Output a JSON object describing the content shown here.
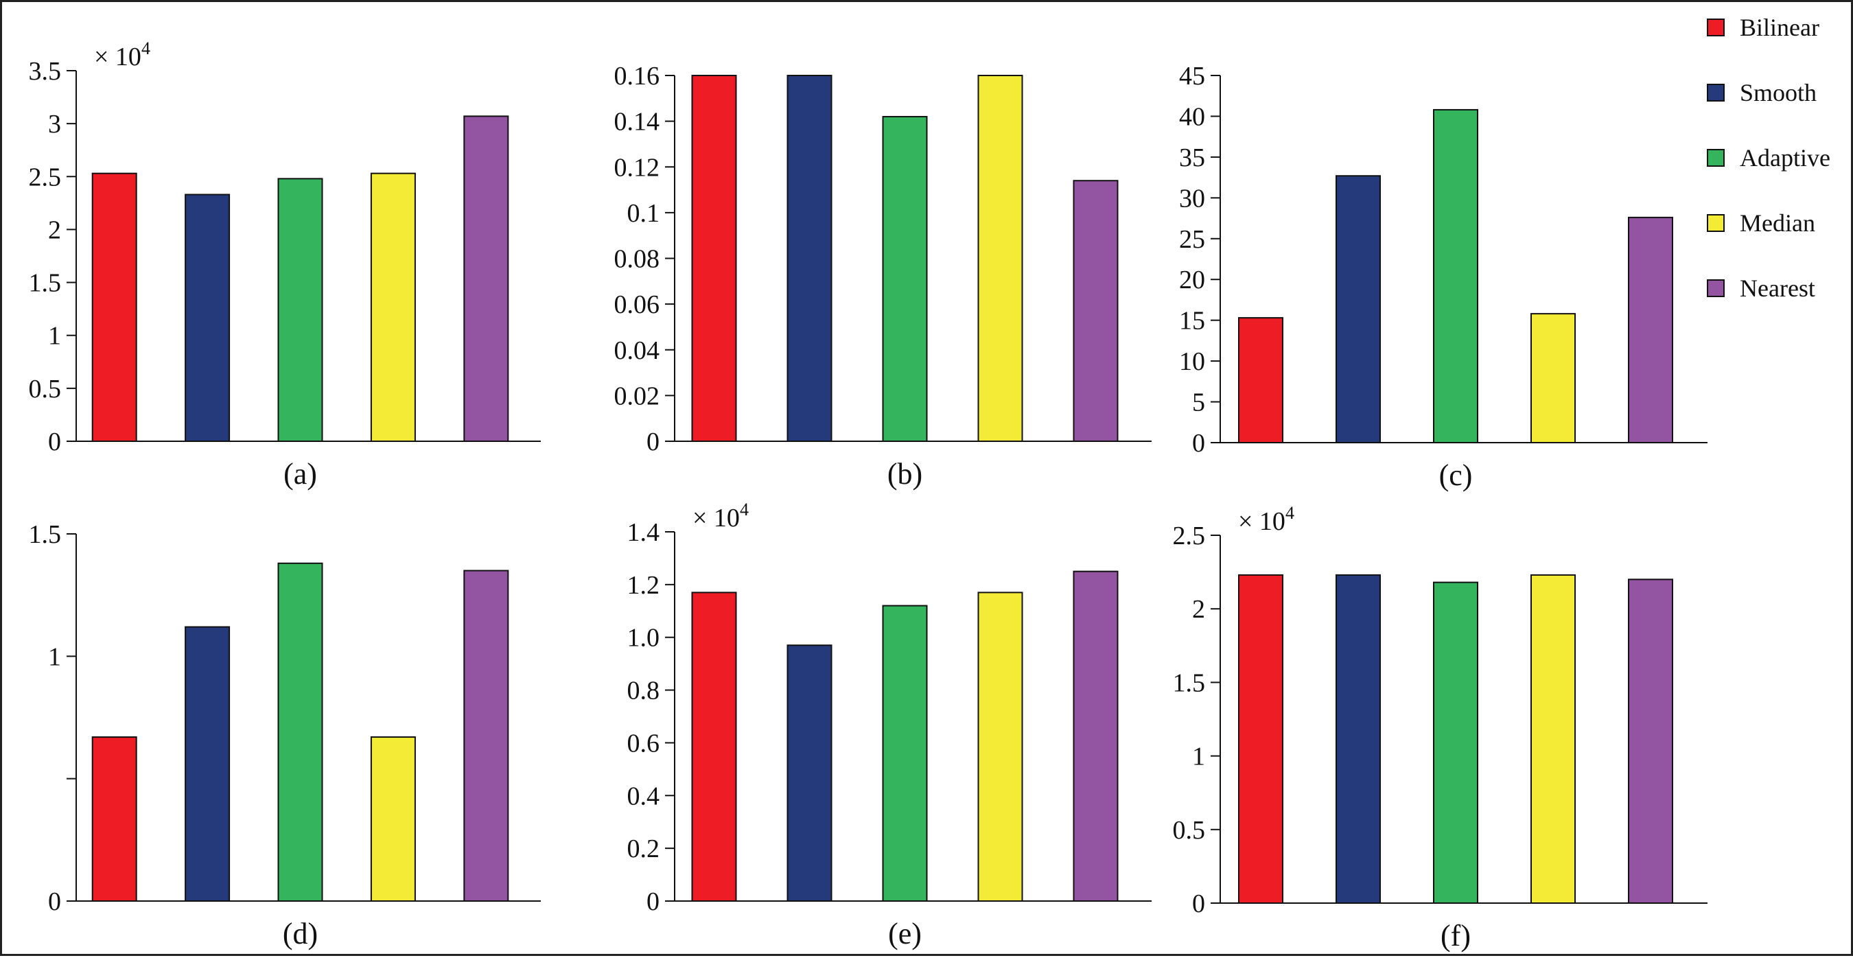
{
  "legend": [
    {
      "label": "Bilinear",
      "color": "#ee1c25"
    },
    {
      "label": "Smooth",
      "color": "#253a7a"
    },
    {
      "label": "Adaptive",
      "color": "#34b55d"
    },
    {
      "label": "Median",
      "color": "#f3eb36"
    },
    {
      "label": "Nearest",
      "color": "#9355a2"
    }
  ],
  "chart_data": [
    {
      "type": "bar",
      "panel_label": "(a)",
      "categories": [
        "Bilinear",
        "Smooth",
        "Adaptive",
        "Median",
        "Nearest"
      ],
      "values": [
        2.53,
        2.33,
        2.48,
        2.53,
        3.07
      ],
      "multiplier_label": "× 10",
      "multiplier_exp": "4",
      "ylim": [
        0,
        3.5
      ],
      "yticks": [
        0,
        0.5,
        1,
        1.5,
        2,
        2.5,
        3,
        3.5
      ],
      "ytick_labels": [
        "0",
        "0.5",
        "1",
        "1.5",
        "2",
        "2.5",
        "3",
        "3.5"
      ]
    },
    {
      "type": "bar",
      "panel_label": "(b)",
      "categories": [
        "Bilinear",
        "Smooth",
        "Adaptive",
        "Median",
        "Nearest"
      ],
      "values": [
        0.16,
        0.16,
        0.142,
        0.16,
        0.114
      ],
      "multiplier_label": "",
      "multiplier_exp": "",
      "ylim": [
        0,
        0.16
      ],
      "yticks": [
        0,
        0.02,
        0.04,
        0.06,
        0.08,
        0.1,
        0.12,
        0.14,
        0.16
      ],
      "ytick_labels": [
        "0",
        "0.02",
        "0.04",
        "0.06",
        "0.08",
        "0.1",
        "0.12",
        "0.14",
        "0.16"
      ]
    },
    {
      "type": "bar",
      "panel_label": "(c)",
      "categories": [
        "Bilinear",
        "Smooth",
        "Adaptive",
        "Median",
        "Nearest"
      ],
      "values": [
        15.3,
        32.7,
        40.8,
        15.8,
        27.6
      ],
      "multiplier_label": "",
      "multiplier_exp": "",
      "ylim": [
        0,
        45
      ],
      "yticks": [
        0,
        5,
        10,
        15,
        20,
        25,
        30,
        35,
        40,
        45
      ],
      "ytick_labels": [
        "0",
        "5",
        "10",
        "15",
        "20",
        "25",
        "30",
        "35",
        "40",
        "45"
      ]
    },
    {
      "type": "bar",
      "panel_label": "(d)",
      "categories": [
        "Bilinear",
        "Smooth",
        "Adaptive",
        "Median",
        "Nearest"
      ],
      "values": [
        0.67,
        1.12,
        1.38,
        0.67,
        1.35
      ],
      "multiplier_label": "",
      "multiplier_exp": "",
      "ylim": [
        0,
        1.5
      ],
      "yticks": [
        0,
        0.5,
        1,
        1.5
      ],
      "ytick_labels": [
        "0",
        "",
        "1",
        "1.5"
      ]
    },
    {
      "type": "bar",
      "panel_label": "(e)",
      "categories": [
        "Bilinear",
        "Smooth",
        "Adaptive",
        "Median",
        "Nearest"
      ],
      "values": [
        1.17,
        0.97,
        1.12,
        1.17,
        1.25
      ],
      "multiplier_label": "× 10",
      "multiplier_exp": "4",
      "ylim": [
        0,
        1.4
      ],
      "yticks": [
        0,
        0.2,
        0.4,
        0.6,
        0.8,
        1.0,
        1.2,
        1.4
      ],
      "ytick_labels": [
        "0",
        "0.2",
        "0.4",
        "0.6",
        "0.8",
        "1.0",
        "1.2",
        "1.4"
      ]
    },
    {
      "type": "bar",
      "panel_label": "(f)",
      "categories": [
        "Bilinear",
        "Smooth",
        "Adaptive",
        "Median",
        "Nearest"
      ],
      "values": [
        2.23,
        2.23,
        2.18,
        2.23,
        2.2
      ],
      "multiplier_label": "× 10",
      "multiplier_exp": "4",
      "ylim": [
        0,
        2.5
      ],
      "yticks": [
        0,
        0.5,
        1,
        1.5,
        2,
        2.5
      ],
      "ytick_labels": [
        "0",
        "0.5",
        "1",
        "1.5",
        "2",
        "2.5"
      ]
    }
  ]
}
